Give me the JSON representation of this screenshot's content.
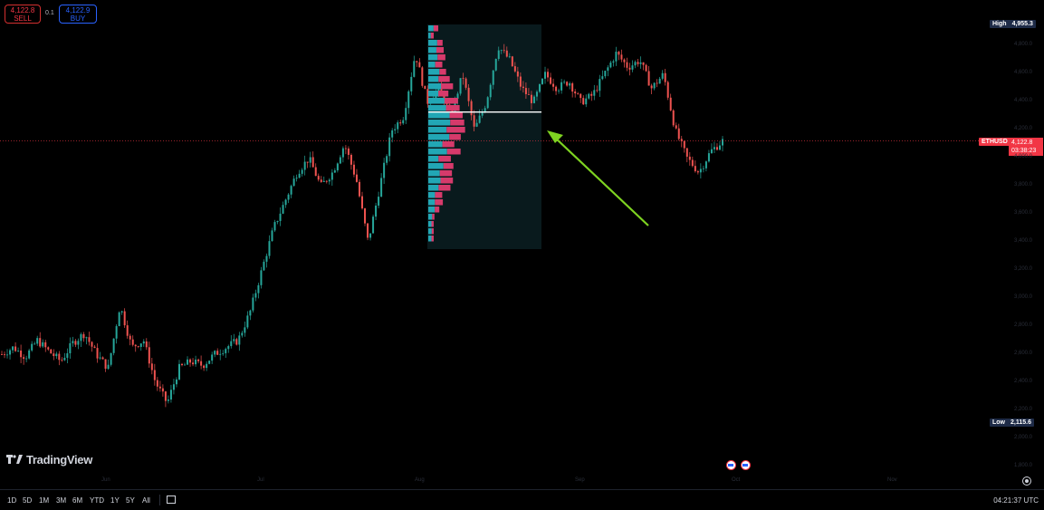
{
  "trade": {
    "sell_price": "4,122.8",
    "sell_label": "SELL",
    "buy_price": "4,122.9",
    "buy_label": "BUY",
    "spread": "0.1"
  },
  "price_scale": {
    "high_label": "High",
    "high_value": "4,955.3",
    "low_label": "Low",
    "low_value": "2,115.6",
    "symbol": "ETHUSD",
    "current_price": "4,122.8",
    "countdown": "03:38:23",
    "tick_labels": [
      "4,800.0",
      "4,600.0",
      "4,400.0",
      "4,200.0",
      "4,000.0",
      "3,800.0",
      "3,600.0",
      "3,400.0",
      "3,200.0",
      "3,000.0",
      "2,800.0",
      "2,600.0",
      "2,400.0",
      "2,200.0",
      "2,000.0",
      "1,800.0"
    ]
  },
  "time_axis": {
    "labels": [
      "Jun",
      "Jul",
      "Aug",
      "Sep",
      "Oct",
      "Nov"
    ]
  },
  "branding": {
    "logo_text": "TradingView"
  },
  "bottom_bar": {
    "ranges": [
      "1D",
      "5D",
      "1M",
      "3M",
      "6M",
      "YTD",
      "1Y",
      "5Y",
      "All"
    ],
    "clock": "04:21:37 UTC"
  },
  "colors": {
    "up": "#26a69a",
    "down": "#ef5350",
    "volume_profile_up": "#22a7b5",
    "volume_profile_down": "#d63a6b",
    "arrow": "#7ed321",
    "price_line": "#f23645",
    "label_bg": "#1e2b47"
  },
  "chart_data": {
    "type": "candlestick",
    "symbol": "ETHUSD",
    "high": 4955.3,
    "low": 2115.6,
    "last": 4122.8,
    "x": [
      "Jun",
      "Jul",
      "Aug",
      "Sep",
      "Oct",
      "Nov"
    ],
    "close_path": [
      2600,
      2650,
      2580,
      2700,
      2620,
      2550,
      2680,
      2750,
      2600,
      2500,
      2950,
      2650,
      2700,
      2400,
      2250,
      2500,
      2550,
      2520,
      2600,
      2650,
      2700,
      2900,
      3200,
      3500,
      3700,
      3900,
      4000,
      3800,
      3900,
      4100,
      3850,
      3400,
      3800,
      4200,
      4300,
      4750,
      4400,
      4500,
      4300,
      4600,
      4200,
      4400,
      4800,
      4700,
      4500,
      4400,
      4600,
      4500,
      4550,
      4400,
      4450,
      4600,
      4750,
      4650,
      4700,
      4500,
      4600,
      4200,
      4000,
      3900,
      4050,
      4122.8
    ],
    "volume_profile_poc": 4330,
    "annotations": [
      "volume profile range Aug–early Sep",
      "green arrow pointing at POC line"
    ]
  }
}
